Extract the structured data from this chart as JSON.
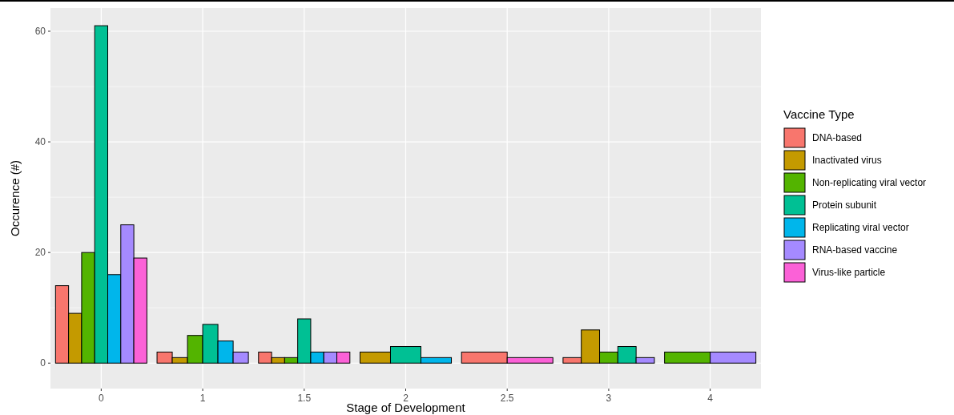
{
  "chart_data": {
    "type": "bar",
    "xlabel": "Stage of Development",
    "ylabel": "Occurence (#)",
    "legend_title": "Vaccine Type",
    "legend": "right",
    "grid": true,
    "categories": [
      "0",
      "1",
      "1.5",
      "2",
      "2.5",
      "3",
      "4"
    ],
    "ylim": [
      -4.6,
      64.2
    ],
    "yticks": [
      0,
      20,
      40,
      60
    ],
    "series": [
      {
        "name": "DNA-based",
        "color": "#f8766d",
        "values": [
          14,
          2,
          2,
          null,
          2,
          1,
          null
        ]
      },
      {
        "name": "Inactivated virus",
        "color": "#c49a00",
        "values": [
          9,
          1,
          1,
          2,
          null,
          6,
          null
        ]
      },
      {
        "name": "Non-replicating viral vector",
        "color": "#53b400",
        "values": [
          20,
          5,
          1,
          null,
          null,
          2,
          2
        ]
      },
      {
        "name": "Protein subunit",
        "color": "#00c094",
        "values": [
          61,
          7,
          8,
          3,
          null,
          3,
          null
        ]
      },
      {
        "name": "Replicating viral vector",
        "color": "#00b6eb",
        "values": [
          16,
          4,
          2,
          1,
          null,
          null,
          null
        ]
      },
      {
        "name": "RNA-based vaccine",
        "color": "#a58aff",
        "values": [
          25,
          2,
          2,
          null,
          null,
          1,
          2
        ]
      },
      {
        "name": "Virus-like particle",
        "color": "#fb61d7",
        "values": [
          19,
          null,
          2,
          null,
          1,
          null,
          null
        ]
      }
    ]
  }
}
